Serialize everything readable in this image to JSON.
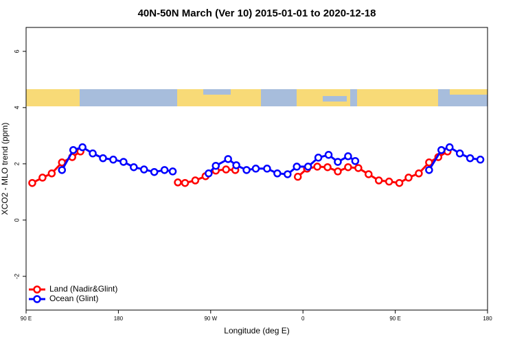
{
  "chart_data": {
    "type": "line",
    "title": "40N-50N March (Ver 10)   2015-01-01 to 2020-12-18",
    "x_label": "Longitude (deg E)",
    "y_label": "XCO2 - MLO trend (ppm)",
    "xlim": [
      90,
      540
    ],
    "ylim": [
      -3.2,
      6.85
    ],
    "xticks": [
      {
        "value": 90,
        "label": "90 E"
      },
      180,
      {
        "value": 270,
        "label": "90 W"
      },
      {
        "value": 360,
        "label": "0"
      },
      {
        "value": 450,
        "label": "90 E"
      },
      {
        "value": 540,
        "label": "180"
      }
    ],
    "yticks": [
      -2,
      0,
      2,
      4,
      6
    ],
    "legend": "bottom-left",
    "series": [
      {
        "name": "Land (Nadir&Glint)",
        "color": "#ff0000",
        "x": [
          96,
          106,
          115,
          125,
          135,
          143,
          null,
          238,
          245,
          255,
          265,
          275,
          285,
          294,
          null,
          355,
          364,
          374,
          384,
          394,
          404,
          414,
          424,
          434,
          444,
          454,
          463,
          473,
          483,
          492,
          501
        ],
        "values": [
          1.32,
          1.51,
          1.66,
          2.05,
          2.24,
          2.44,
          null,
          1.34,
          1.32,
          1.41,
          1.56,
          1.76,
          1.8,
          1.78,
          null,
          1.54,
          1.83,
          1.9,
          1.88,
          1.73,
          1.88,
          1.85,
          1.63,
          1.41,
          1.37,
          1.32,
          1.51,
          1.66,
          2.05,
          2.24,
          2.44
        ]
      },
      {
        "name": "Ocean (Glint)",
        "color": "#0000ff",
        "x": [
          125,
          136,
          145,
          155,
          165,
          175,
          185,
          195,
          205,
          215,
          225,
          233,
          null,
          268,
          275,
          287,
          295,
          305,
          314,
          325,
          335,
          345,
          354,
          365,
          375,
          385,
          394,
          404,
          411,
          null,
          483,
          495,
          503,
          513,
          523,
          533
        ],
        "values": [
          1.78,
          2.49,
          2.59,
          2.37,
          2.2,
          2.15,
          2.07,
          1.88,
          1.8,
          1.71,
          1.78,
          1.73,
          null,
          1.66,
          1.93,
          2.17,
          1.95,
          1.78,
          1.83,
          1.83,
          1.66,
          1.63,
          1.9,
          1.9,
          2.22,
          2.32,
          2.07,
          2.27,
          2.1,
          null,
          1.78,
          2.49,
          2.59,
          2.37,
          2.2,
          2.15
        ]
      }
    ]
  }
}
